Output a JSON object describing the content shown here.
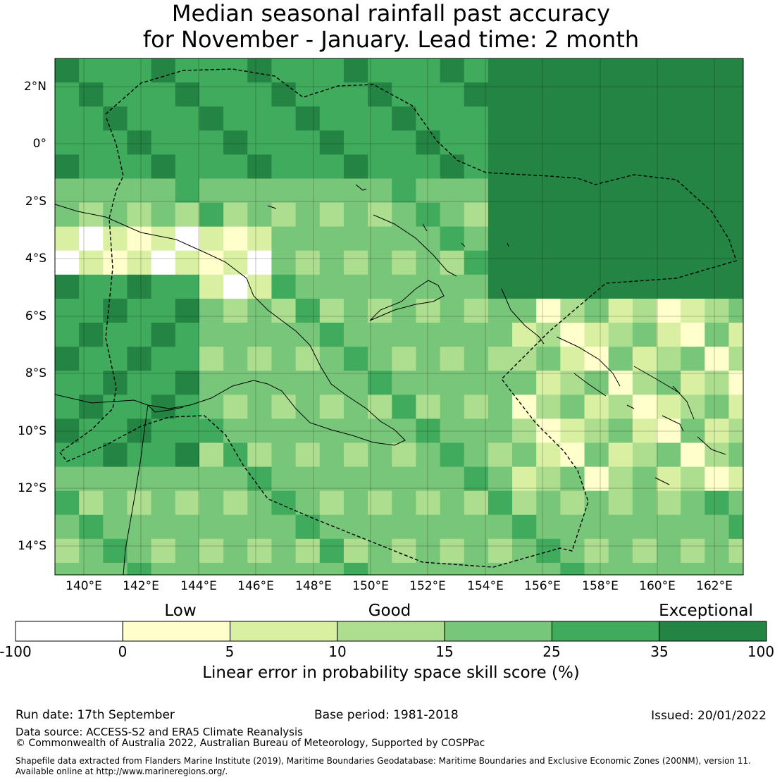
{
  "title": {
    "line1": "Median seasonal rainfall past accuracy",
    "line2": "for November - January. Lead time: 2 month"
  },
  "map": {
    "lon_ticks": [
      "140°E",
      "142°E",
      "144°E",
      "146°E",
      "148°E",
      "150°E",
      "152°E",
      "154°E",
      "156°E",
      "158°E",
      "160°E",
      "162°E"
    ],
    "lat_ticks": [
      "2°N",
      "0°",
      "2°S",
      "4°S",
      "6°S",
      "8°S",
      "10°S",
      "12°S",
      "14°S"
    ],
    "lon_range": [
      139,
      163
    ],
    "lat_range": [
      -15,
      3
    ],
    "gridlines": true,
    "boundary": "maritime EEZ dashed line"
  },
  "colorbar": {
    "categories": [
      "Low",
      "Good",
      "Exceptional"
    ],
    "ticks": [
      "-100",
      "0",
      "5",
      "10",
      "15",
      "25",
      "35",
      "100"
    ],
    "colors": [
      "#ffffff",
      "#ffffcc",
      "#d9f0a3",
      "#addd8e",
      "#78c679",
      "#41ab5d",
      "#238443"
    ],
    "label": "Linear error in probability space skill score (%)"
  },
  "footer": {
    "run_date": "Run date: 17th September",
    "base_period": "Base period: 1981-2018",
    "issued": "Issued: 20/01/2022",
    "data_source": "Data source: ACCESS-S2 and ERA5 Climate Reanalysis",
    "copyright": "© Commonwealth of Australia 2022, Australian Bureau of Meteorology, Supported by COSPPac",
    "shapefile_line1": "Shapefile data extracted from Flanders Marine Institute (2019), Maritime Boundaries Geodatabase: Maritime Boundaries and Exclusive Economic Zones (200NM), version 11.",
    "shapefile_line2": "Available online at http://www.marineregions.org/."
  }
}
